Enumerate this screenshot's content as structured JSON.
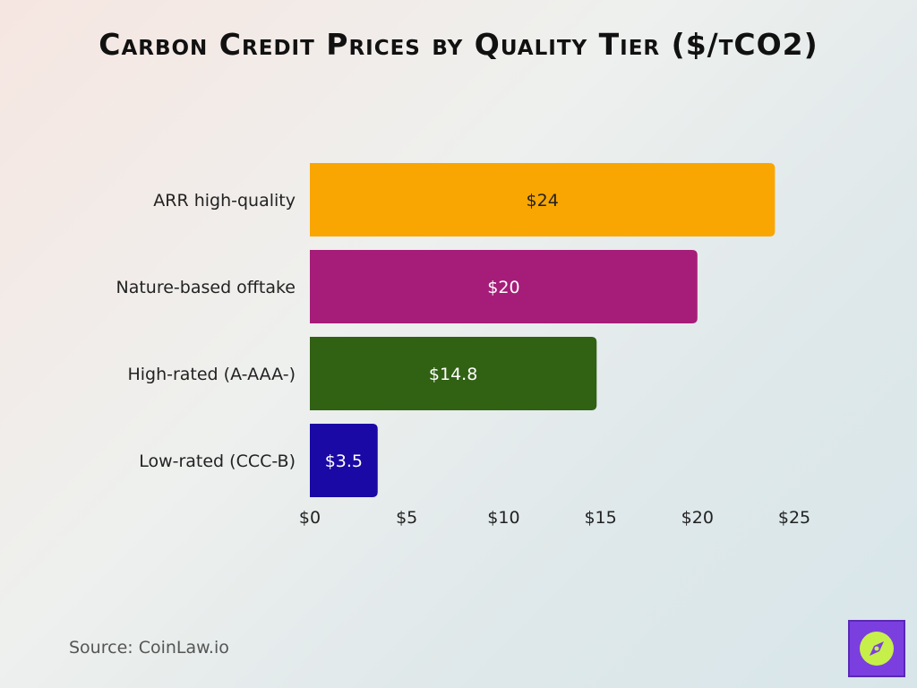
{
  "title": "Carbon Credit Prices by Quality Tier ($/tCO2)",
  "source": "Source: CoinLaw.io",
  "brand_icon": "compass-icon",
  "chart_data": {
    "type": "bar",
    "orientation": "horizontal",
    "categories": [
      "ARR high-quality",
      "Nature-based offtake",
      "High-rated (A-AAA-)",
      "Low-rated (CCC-B)"
    ],
    "values": [
      24,
      20,
      14.8,
      3.5
    ],
    "value_labels": [
      "$24",
      "$20",
      "$14.8",
      "$3.5"
    ],
    "colors": [
      "#f9a602",
      "#a61d79",
      "#316113",
      "#1a09a4"
    ],
    "xlim": [
      0,
      25
    ],
    "xticks": [
      0,
      5,
      10,
      15,
      20,
      25
    ],
    "xtick_labels": [
      "$0",
      "$5",
      "$10",
      "$15",
      "$20",
      "$25"
    ],
    "grid": false,
    "legend": "none"
  }
}
